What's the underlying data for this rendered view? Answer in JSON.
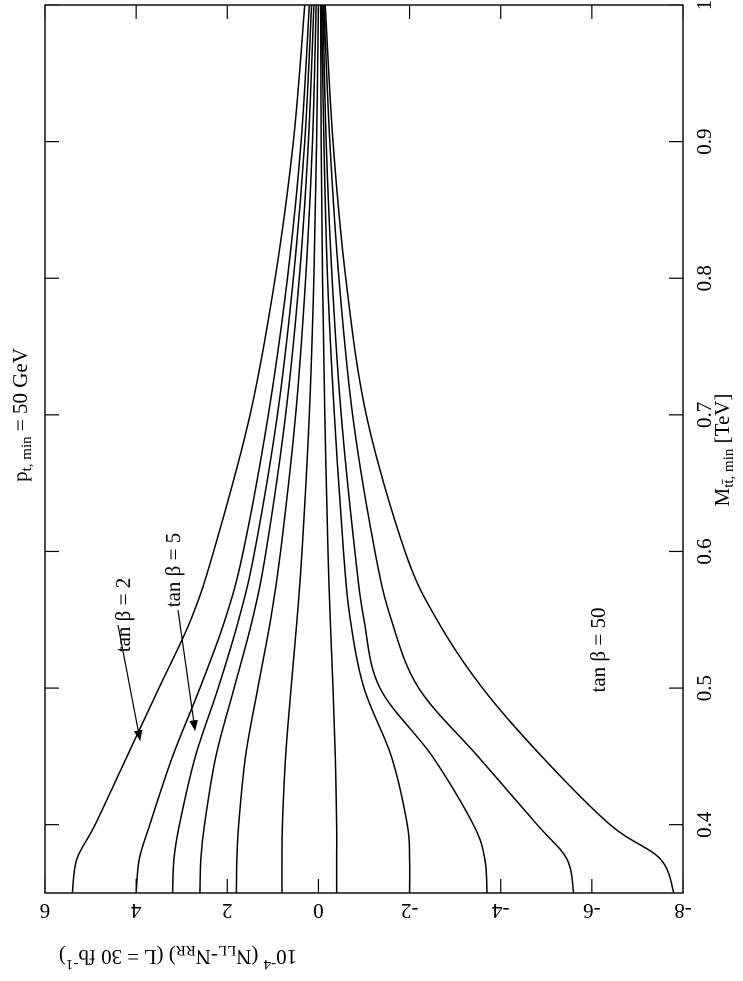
{
  "chart_data": {
    "type": "line",
    "title": [
      "p",
      "t, min",
      " = 50 GeV"
    ],
    "x_label": [
      "M",
      "tt̄, min",
      "  [TeV]"
    ],
    "y_label": [
      "10",
      "-4",
      " (N",
      "LL",
      "-N",
      "RR",
      ")  (L = 30 fb",
      "-1",
      ")"
    ],
    "x": [
      0.35,
      0.375,
      0.4,
      0.45,
      0.5,
      0.55,
      0.6,
      0.7,
      0.8,
      0.9,
      1.0
    ],
    "color": "#000000",
    "series": [
      {
        "values": [
          5.4,
          5.3,
          4.9,
          4.2,
          3.5,
          2.8,
          2.3,
          1.5,
          0.95,
          0.55,
          0.3
        ]
      },
      {
        "values": [
          4.0,
          3.93,
          3.7,
          3.2,
          2.6,
          2.05,
          1.65,
          1.1,
          0.68,
          0.38,
          0.2
        ]
      },
      {
        "values": [
          3.2,
          3.17,
          3.05,
          2.7,
          2.2,
          1.75,
          1.4,
          0.9,
          0.55,
          0.3,
          0.15
        ]
      },
      {
        "values": [
          2.6,
          2.58,
          2.5,
          2.25,
          1.85,
          1.45,
          1.15,
          0.72,
          0.42,
          0.22,
          0.1
        ]
      },
      {
        "values": [
          1.8,
          1.79,
          1.75,
          1.6,
          1.33,
          1.05,
          0.83,
          0.5,
          0.28,
          0.13,
          0.05
        ]
      },
      {
        "values": [
          0.8,
          0.8,
          0.79,
          0.72,
          0.6,
          0.47,
          0.36,
          0.2,
          0.1,
          0.04,
          0.0
        ]
      },
      {
        "values": [
          -0.4,
          -0.4,
          -0.4,
          -0.37,
          -0.32,
          -0.26,
          -0.21,
          -0.14,
          -0.09,
          -0.06,
          -0.05
        ]
      },
      {
        "values": [
          -2.0,
          -2.0,
          -1.95,
          -1.6,
          -1.0,
          -0.7,
          -0.55,
          -0.35,
          -0.2,
          -0.12,
          -0.07
        ]
      },
      {
        "values": [
          -3.7,
          -3.65,
          -3.4,
          -2.5,
          -1.35,
          -1.0,
          -0.8,
          -0.5,
          -0.3,
          -0.17,
          -0.1
        ]
      },
      {
        "values": [
          -5.6,
          -5.45,
          -4.8,
          -3.5,
          -2.2,
          -1.6,
          -1.24,
          -0.75,
          -0.45,
          -0.25,
          -0.12
        ]
      },
      {
        "values": [
          -7.8,
          -7.5,
          -6.4,
          -4.9,
          -3.6,
          -2.6,
          -1.9,
          -1.05,
          -0.6,
          -0.32,
          -0.15
        ]
      }
    ],
    "annotations": [
      "tan β = 2",
      "tan β = 5",
      "tan β = 50"
    ],
    "xlim": [
      0.35,
      1
    ],
    "xticks": [
      0.4,
      0.5,
      0.6,
      0.7,
      0.8,
      0.9,
      1
    ],
    "ylim": [
      -8,
      6
    ],
    "yticks": [
      6,
      4,
      2,
      0,
      -2,
      -4,
      -6,
      -8
    ]
  }
}
